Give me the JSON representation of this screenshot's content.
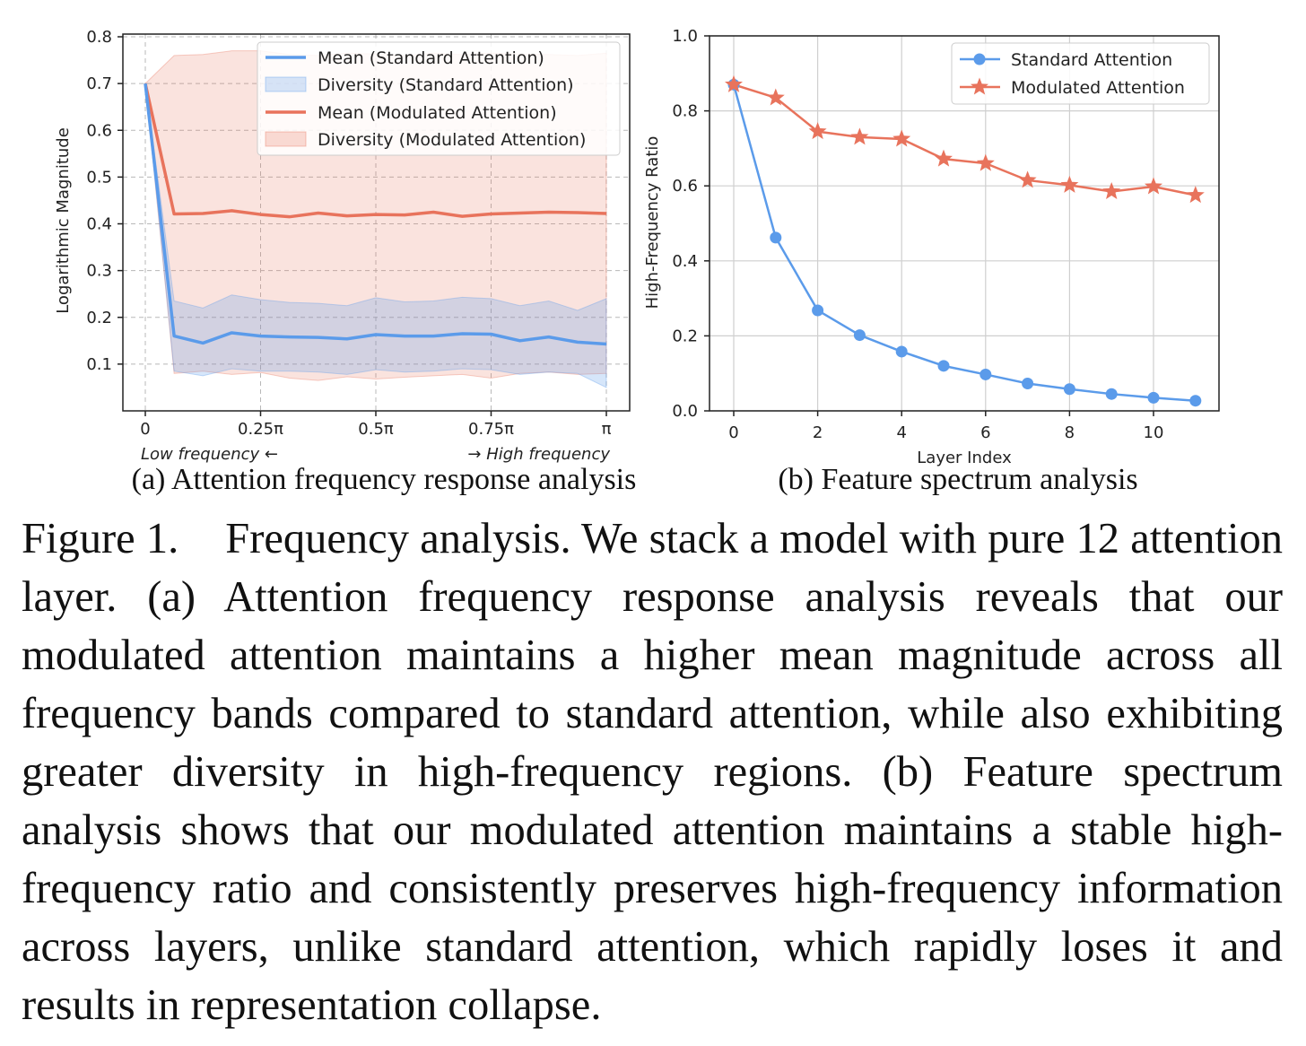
{
  "chart_data": [
    {
      "type": "line",
      "subcaption": "(a) Attention frequency response analysis",
      "xlabel": "",
      "ylabel": "Logarithmic Magnitude",
      "x_tick_labels": [
        "0",
        "0.25π",
        "0.5π",
        "0.75π",
        "π"
      ],
      "x_tick_values": [
        0,
        0.25,
        0.5,
        0.75,
        1.0
      ],
      "y_ticks": [
        0.1,
        0.2,
        0.3,
        0.4,
        0.5,
        0.6,
        0.7,
        0.8
      ],
      "ylim": [
        0.0,
        0.8
      ],
      "xlim": [
        0,
        1.0
      ],
      "x_unit": "π",
      "grid": true,
      "grid_style": "dashed",
      "legend_position": "top-right",
      "annotations": {
        "left": "Low frequency ←",
        "right": "→ High frequency"
      },
      "x": [
        0,
        0.0625,
        0.125,
        0.1875,
        0.25,
        0.3125,
        0.375,
        0.4375,
        0.5,
        0.5625,
        0.625,
        0.6875,
        0.75,
        0.8125,
        0.875,
        0.9375,
        1.0
      ],
      "series": [
        {
          "name": "Mean (Standard Attention)",
          "kind": "line",
          "color": "#5b9bea",
          "values": [
            0.7,
            0.16,
            0.145,
            0.167,
            0.16,
            0.158,
            0.157,
            0.154,
            0.163,
            0.16,
            0.16,
            0.165,
            0.164,
            0.15,
            0.158,
            0.147,
            0.143
          ]
        },
        {
          "name": "Diversity (Standard Attention)",
          "kind": "band",
          "color": "#5b9bea",
          "lower": [
            0.7,
            0.085,
            0.075,
            0.09,
            0.085,
            0.085,
            0.083,
            0.078,
            0.088,
            0.083,
            0.085,
            0.09,
            0.088,
            0.078,
            0.083,
            0.08,
            0.05
          ],
          "upper": [
            0.7,
            0.235,
            0.22,
            0.248,
            0.238,
            0.232,
            0.23,
            0.225,
            0.242,
            0.233,
            0.235,
            0.243,
            0.24,
            0.225,
            0.235,
            0.215,
            0.24
          ]
        },
        {
          "name": "Mean (Modulated Attention)",
          "kind": "line",
          "color": "#e8735c",
          "values": [
            0.7,
            0.421,
            0.422,
            0.428,
            0.42,
            0.415,
            0.423,
            0.417,
            0.42,
            0.419,
            0.425,
            0.416,
            0.421,
            0.423,
            0.425,
            0.424,
            0.422
          ]
        },
        {
          "name": "Diversity (Modulated Attention)",
          "kind": "band",
          "color": "#e8735c",
          "lower": [
            0.7,
            0.08,
            0.085,
            0.078,
            0.082,
            0.07,
            0.065,
            0.073,
            0.068,
            0.072,
            0.075,
            0.078,
            0.07,
            0.08,
            0.083,
            0.078,
            0.08
          ],
          "upper": [
            0.7,
            0.76,
            0.762,
            0.77,
            0.77,
            0.762,
            0.76,
            0.765,
            0.763,
            0.76,
            0.765,
            0.762,
            0.765,
            0.763,
            0.762,
            0.76,
            0.765
          ]
        }
      ]
    },
    {
      "type": "line",
      "subcaption": "(b) Feature spectrum analysis",
      "xlabel": "Layer Index",
      "ylabel": "High-Frequency Ratio",
      "x_ticks": [
        0,
        2,
        4,
        6,
        8,
        10
      ],
      "y_ticks": [
        0.0,
        0.2,
        0.4,
        0.6,
        0.8,
        1.0
      ],
      "y_tick_labels": [
        "0.0",
        "0.2",
        "0.4",
        "0.6",
        "0.8",
        "1.0"
      ],
      "ylim": [
        0.0,
        1.0
      ],
      "xlim": [
        -0.6,
        11.6
      ],
      "grid": true,
      "grid_style": "solid",
      "legend_position": "top-right",
      "x": [
        0,
        1,
        2,
        3,
        4,
        5,
        6,
        7,
        8,
        9,
        10,
        11
      ],
      "series": [
        {
          "name": "Standard Attention",
          "marker": "circle",
          "color": "#5b9bea",
          "values": [
            0.87,
            0.462,
            0.268,
            0.202,
            0.158,
            0.12,
            0.097,
            0.073,
            0.058,
            0.045,
            0.035,
            0.027
          ]
        },
        {
          "name": "Modulated Attention",
          "marker": "star",
          "color": "#e8735c",
          "values": [
            0.87,
            0.835,
            0.745,
            0.73,
            0.725,
            0.672,
            0.66,
            0.615,
            0.602,
            0.585,
            0.598,
            0.575
          ]
        }
      ]
    }
  ],
  "caption": {
    "label": "Figure 1.",
    "text": "Frequency analysis. We stack a model with pure 12 attention layer. (a) Attention frequency response analysis reveals that our modulated attention maintains a higher mean magnitude across all frequency bands compared to standard attention, while also exhibiting greater diversity in high-frequency regions. (b) Feature spectrum analysis shows that our modulated attention maintains a stable high-frequency ratio and consistently preserves high-frequency information across layers, unlike standard attention, which rapidly loses it and results in representation collapse."
  }
}
